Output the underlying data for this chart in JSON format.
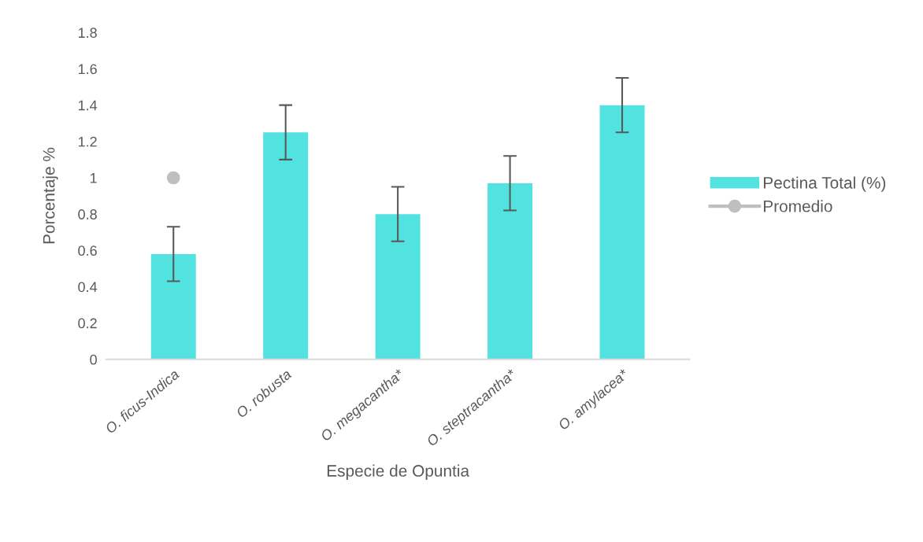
{
  "chart_data": {
    "type": "bar",
    "xlabel": "Especie de Opuntia",
    "ylabel": "Porcentaje %",
    "categories": [
      "O. ficus-Indica",
      "O. robusta",
      "O. megacantha*",
      "O. steptracantha*",
      "O. amylacea*"
    ],
    "series": [
      {
        "name": "Pectina Total (%)",
        "color": "#52e3e1",
        "values": [
          0.58,
          1.25,
          0.8,
          0.97,
          1.4
        ],
        "errors": [
          0.15,
          0.15,
          0.15,
          0.15,
          0.15
        ]
      },
      {
        "name": "Promedio",
        "type": "line",
        "color": "#bfbfbf",
        "marker": "circle",
        "values": [
          1.0,
          null,
          null,
          null,
          null
        ]
      }
    ],
    "ylim": [
      0,
      1.8
    ],
    "yticks": [
      0,
      0.2,
      0.4,
      0.6,
      0.8,
      1,
      1.2,
      1.4,
      1.6,
      1.8
    ],
    "grid": false,
    "legend": "right"
  }
}
